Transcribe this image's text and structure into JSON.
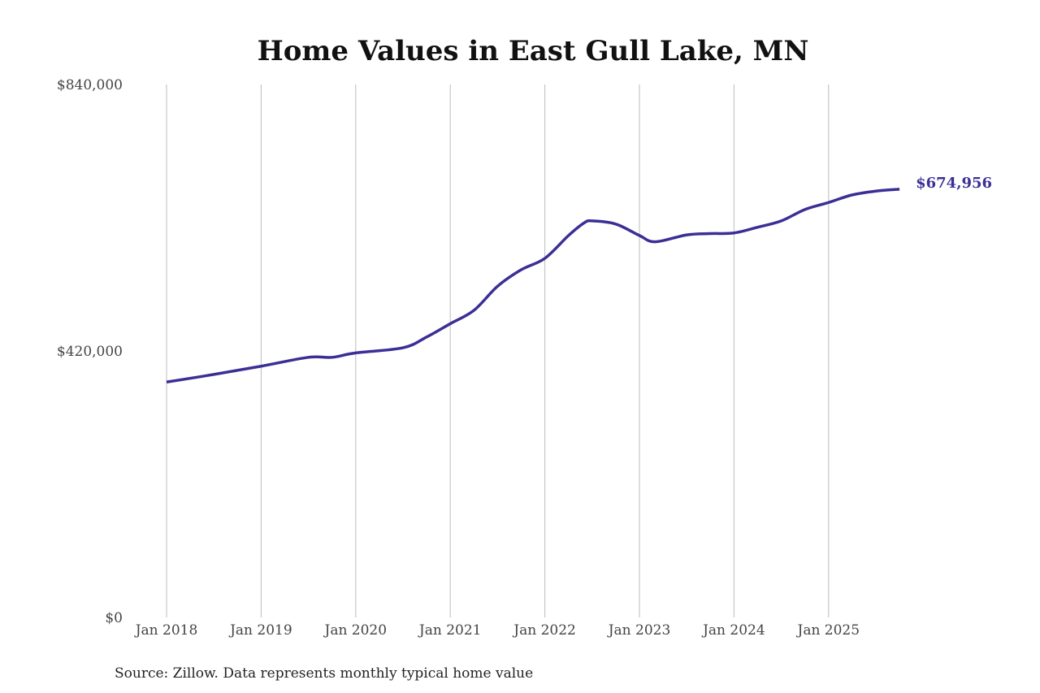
{
  "chart_data": {
    "type": "line",
    "title": "Home Values in East Gull Lake, MN",
    "source": "Source: Zillow. Data represents monthly typical home value",
    "ylim": [
      0,
      840000
    ],
    "y_ticks": [
      {
        "value": 0,
        "label": "$0"
      },
      {
        "value": 420000,
        "label": "$420,000"
      },
      {
        "value": 840000,
        "label": "$840,000"
      }
    ],
    "x_ticks": [
      "Jan 2018",
      "Jan 2019",
      "Jan 2020",
      "Jan 2021",
      "Jan 2022",
      "Jan 2023",
      "Jan 2024",
      "Jan 2025"
    ],
    "x_tick_years": [
      2018,
      2019,
      2020,
      2021,
      2022,
      2023,
      2024,
      2025
    ],
    "grid": "vertical",
    "line_color": "#3b2f96",
    "end_label": "$674,956",
    "series": [
      {
        "x": [
          "2018-01",
          "2018-07",
          "2019-01",
          "2019-07",
          "2019-10",
          "2020-01",
          "2020-07",
          "2020-10",
          "2021-01",
          "2021-04",
          "2021-07",
          "2021-10",
          "2022-01",
          "2022-04",
          "2022-06",
          "2022-07",
          "2022-10",
          "2023-01",
          "2023-03",
          "2023-07",
          "2023-10",
          "2024-01",
          "2024-04",
          "2024-07",
          "2024-10",
          "2025-01",
          "2025-04",
          "2025-07",
          "2025-10"
        ],
        "values": [
          371000,
          383000,
          396000,
          410000,
          410000,
          417000,
          425000,
          442000,
          463000,
          484000,
          522000,
          548000,
          566000,
          602000,
          622000,
          625000,
          620000,
          602000,
          592000,
          603000,
          605000,
          606000,
          615000,
          625000,
          643000,
          654000,
          666000,
          672000,
          674956
        ]
      }
    ]
  }
}
